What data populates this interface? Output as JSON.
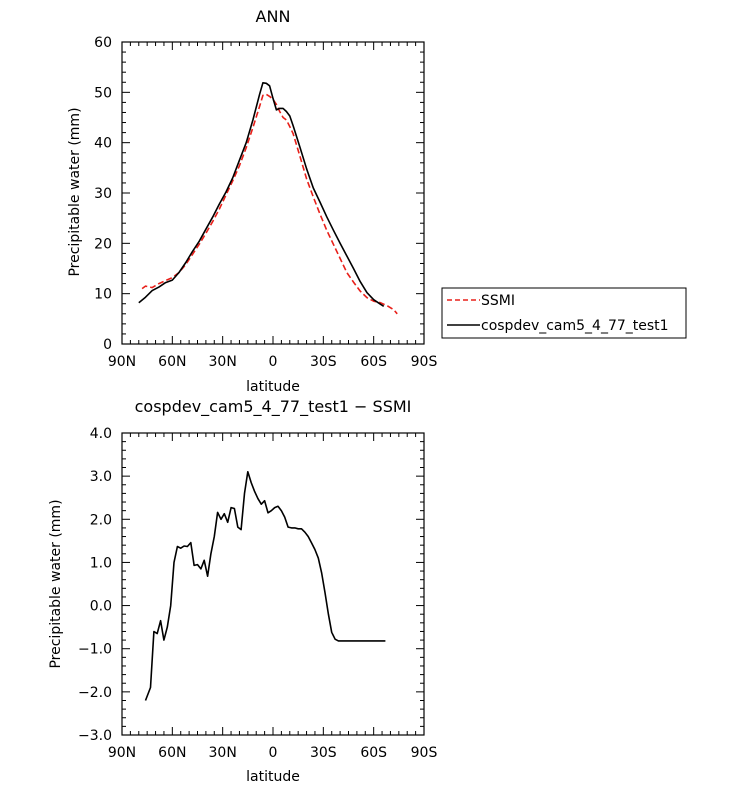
{
  "chart_data": [
    {
      "type": "line",
      "title": "ANN",
      "xlabel": "latitude",
      "ylabel": "Precipitable water (mm)",
      "xlim": [
        90,
        -90
      ],
      "ylim": [
        0,
        60
      ],
      "x_ticks": [
        90,
        60,
        30,
        0,
        -30,
        -60,
        -90
      ],
      "x_tick_labels": [
        "90N",
        "60N",
        "30N",
        "0",
        "30S",
        "60S",
        "90S"
      ],
      "y_ticks": [
        0,
        10,
        20,
        30,
        40,
        50,
        60
      ],
      "y_tick_labels": [
        "0",
        "10",
        "20",
        "30",
        "40",
        "50",
        "60"
      ],
      "legend_position": "right",
      "series": [
        {
          "name": "SSMI",
          "color": "#e8201a",
          "dash": "dashed",
          "x": [
            78,
            76,
            72,
            68,
            64,
            60,
            56,
            52,
            48,
            44,
            40,
            36,
            32,
            28,
            24,
            20,
            16,
            12,
            8,
            6,
            4,
            2,
            0,
            -2,
            -4,
            -6,
            -8,
            -10,
            -12,
            -16,
            -20,
            -24,
            -28,
            -32,
            -36,
            -40,
            -44,
            -48,
            -52,
            -56,
            -60,
            -64,
            -68,
            -72,
            -74
          ],
          "y": [
            11,
            11.5,
            11.2,
            12.0,
            12.6,
            13.2,
            14.2,
            15.8,
            17.8,
            19.8,
            22.0,
            24.3,
            26.8,
            29.6,
            32.4,
            35.4,
            39.0,
            43.0,
            47.2,
            49.4,
            49.6,
            49.2,
            48.6,
            47.6,
            46.2,
            45.0,
            44.5,
            43.2,
            41.8,
            37.4,
            32.8,
            29.2,
            25.8,
            22.6,
            19.8,
            17.0,
            14.2,
            12.3,
            10.5,
            9.2,
            8.5,
            8.2,
            7.6,
            6.8,
            6.0
          ]
        },
        {
          "name": "cospdev_cam5_4_77_test1",
          "color": "#000000",
          "dash": "solid",
          "x": [
            80,
            76,
            72,
            68,
            64,
            60,
            56,
            52,
            48,
            44,
            40,
            36,
            32,
            28,
            24,
            20,
            16,
            12,
            8,
            6,
            4,
            2,
            0,
            -2,
            -4,
            -6,
            -8,
            -10,
            -12,
            -16,
            -20,
            -24,
            -28,
            -32,
            -36,
            -40,
            -44,
            -48,
            -52,
            -56,
            -60,
            -64,
            -66
          ],
          "y": [
            8.2,
            9.3,
            10.6,
            11.3,
            12.2,
            12.7,
            14.2,
            16.2,
            18.4,
            20.4,
            22.8,
            25.2,
            27.8,
            30.2,
            33.0,
            36.5,
            40.0,
            44.5,
            49.6,
            51.9,
            51.8,
            51.3,
            48.8,
            46.5,
            46.8,
            46.8,
            46.2,
            45.3,
            43.4,
            39.2,
            34.8,
            31.0,
            28.2,
            25.3,
            22.6,
            20.0,
            17.5,
            15.0,
            12.4,
            10.2,
            8.8,
            7.9,
            7.5
          ]
        }
      ]
    },
    {
      "type": "line",
      "title": "cospdev_cam5_4_77_test1 − SSMI",
      "xlabel": "latitude",
      "ylabel": "Precipitable water (mm)",
      "xlim": [
        90,
        -90
      ],
      "ylim": [
        -3.0,
        4.0
      ],
      "x_ticks": [
        90,
        60,
        30,
        0,
        -30,
        -60,
        -90
      ],
      "x_tick_labels": [
        "90N",
        "60N",
        "30N",
        "0",
        "30S",
        "60S",
        "90S"
      ],
      "y_ticks": [
        -3,
        -2,
        -1,
        0,
        1,
        2,
        3,
        4
      ],
      "y_tick_labels": [
        "−3.0",
        "−2.0",
        "−1.0",
        "0.0",
        "1.0",
        "2.0",
        "3.0",
        "4.0"
      ],
      "series": [
        {
          "color": "#000000",
          "dash": "solid",
          "x": [
            76,
            73,
            71,
            69,
            67,
            65,
            63,
            61,
            59,
            57,
            55,
            53,
            51,
            49,
            47,
            45,
            43,
            41,
            39,
            37,
            35,
            33,
            31,
            29,
            27,
            25,
            23,
            21,
            19,
            17,
            15,
            13,
            11,
            9,
            7,
            5,
            3,
            1,
            -1,
            -3,
            -5,
            -7,
            -9,
            -11,
            -13,
            -15,
            -17,
            -19,
            -21,
            -23,
            -25,
            -27,
            -29,
            -31,
            -33,
            -35,
            -37,
            -39,
            -41,
            -43,
            -45,
            -47,
            -49,
            -51,
            -53,
            -55,
            -57,
            -59,
            -61,
            -63,
            -65,
            -67
          ],
          "y": [
            -2.2,
            -1.9,
            -0.6,
            -0.65,
            -0.35,
            -0.8,
            -0.5,
            0.0,
            1.0,
            1.37,
            1.33,
            1.38,
            1.37,
            1.46,
            0.93,
            0.95,
            0.85,
            1.05,
            0.68,
            1.2,
            1.6,
            2.16,
            2.0,
            2.13,
            1.93,
            2.27,
            2.25,
            1.82,
            1.76,
            2.6,
            3.1,
            2.85,
            2.65,
            2.48,
            2.35,
            2.43,
            2.15,
            2.2,
            2.27,
            2.3,
            2.2,
            2.05,
            1.82,
            1.8,
            1.8,
            1.78,
            1.78,
            1.7,
            1.6,
            1.45,
            1.3,
            1.1,
            0.75,
            0.3,
            -0.2,
            -0.62,
            -0.78,
            -0.82,
            -0.82,
            -0.82,
            -0.82,
            -0.82,
            -0.82,
            -0.82,
            -0.82,
            -0.82,
            -0.82,
            -0.82,
            -0.82,
            -0.82,
            -0.82,
            -0.82
          ]
        }
      ]
    }
  ]
}
